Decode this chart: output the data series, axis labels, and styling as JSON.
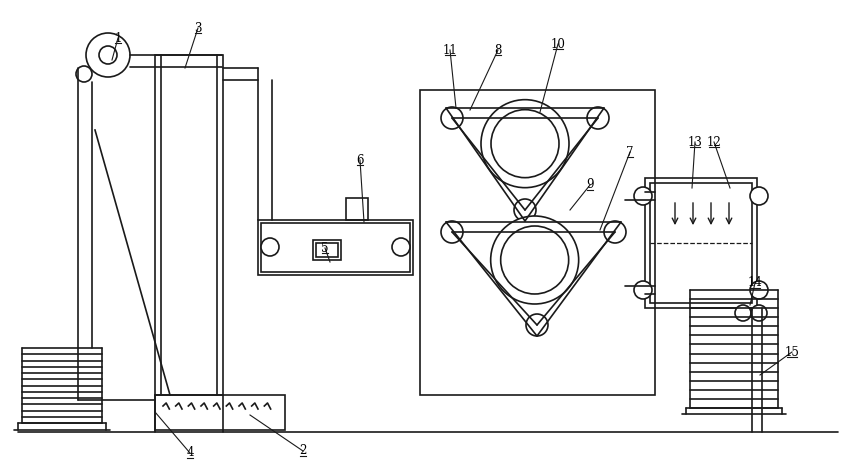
{
  "bg_color": "#ffffff",
  "line_color": "#1a1a1a",
  "label_color": "#000000",
  "figsize": [
    8.56,
    4.68
  ],
  "dpi": 100
}
